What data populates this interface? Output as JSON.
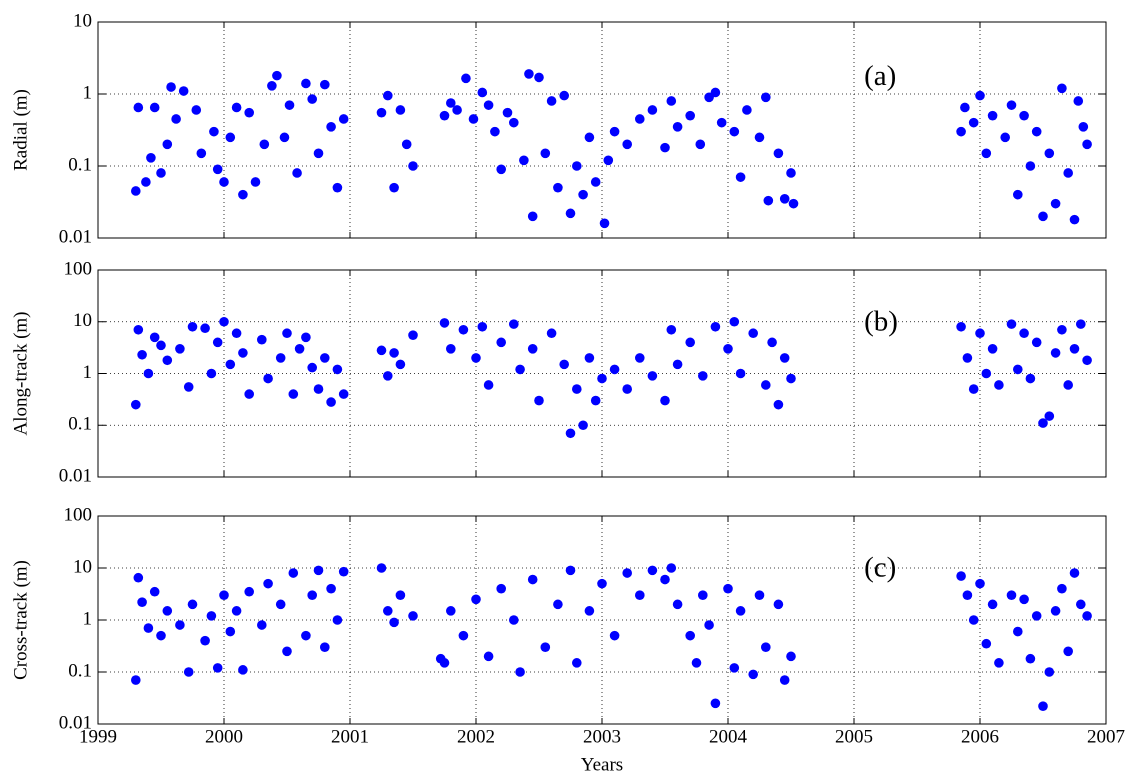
{
  "chart_data": [
    {
      "type": "scatter",
      "ylabel": "Radial (m)",
      "annotation": "(a)",
      "color": "#0000ff",
      "log_y": true,
      "grid": true,
      "show_xtick_labels": false,
      "xlim": [
        1999,
        2007
      ],
      "xticks": [
        1999,
        2000,
        2001,
        2002,
        2003,
        2004,
        2005,
        2006,
        2007
      ],
      "ylim": [
        0.01,
        10
      ],
      "yticks": [
        0.01,
        0.1,
        1,
        10
      ],
      "x": [
        1999.3,
        1999.32,
        1999.38,
        1999.42,
        1999.45,
        1999.5,
        1999.55,
        1999.58,
        1999.62,
        1999.68,
        1999.78,
        1999.82,
        1999.92,
        1999.95,
        2000.0,
        2000.05,
        2000.1,
        2000.15,
        2000.2,
        2000.25,
        2000.32,
        2000.38,
        2000.42,
        2000.48,
        2000.52,
        2000.58,
        2000.65,
        2000.7,
        2000.75,
        2000.8,
        2000.85,
        2000.9,
        2000.95,
        2001.25,
        2001.3,
        2001.35,
        2001.4,
        2001.45,
        2001.5,
        2001.75,
        2001.8,
        2001.85,
        2001.92,
        2001.98,
        2002.05,
        2002.1,
        2002.15,
        2002.2,
        2002.25,
        2002.3,
        2002.38,
        2002.42,
        2002.45,
        2002.5,
        2002.55,
        2002.6,
        2002.65,
        2002.7,
        2002.75,
        2002.8,
        2002.85,
        2002.9,
        2002.95,
        2003.02,
        2003.05,
        2003.1,
        2003.2,
        2003.3,
        2003.4,
        2003.5,
        2003.55,
        2003.6,
        2003.7,
        2003.78,
        2003.85,
        2003.9,
        2003.95,
        2004.05,
        2004.1,
        2004.15,
        2004.25,
        2004.3,
        2004.32,
        2004.4,
        2004.45,
        2004.5,
        2004.52,
        2005.85,
        2005.88,
        2005.95,
        2006.0,
        2006.05,
        2006.1,
        2006.2,
        2006.25,
        2006.3,
        2006.35,
        2006.4,
        2006.45,
        2006.5,
        2006.55,
        2006.6,
        2006.65,
        2006.7,
        2006.75,
        2006.78,
        2006.82,
        2006.85
      ],
      "values": [
        0.045,
        0.65,
        0.06,
        0.13,
        0.65,
        0.08,
        0.2,
        1.25,
        0.45,
        1.1,
        0.6,
        0.15,
        0.3,
        0.09,
        0.06,
        0.25,
        0.65,
        0.04,
        0.55,
        0.06,
        0.2,
        1.3,
        1.8,
        0.25,
        0.7,
        0.08,
        1.4,
        0.85,
        0.15,
        1.35,
        0.35,
        0.05,
        0.45,
        0.55,
        0.95,
        0.05,
        0.6,
        0.2,
        0.1,
        0.5,
        0.75,
        0.6,
        1.65,
        0.45,
        1.05,
        0.7,
        0.3,
        0.09,
        0.55,
        0.4,
        0.12,
        1.9,
        0.02,
        1.7,
        0.15,
        0.8,
        0.05,
        0.95,
        0.022,
        0.1,
        0.04,
        0.25,
        0.06,
        0.016,
        0.12,
        0.3,
        0.2,
        0.45,
        0.6,
        0.18,
        0.8,
        0.35,
        0.5,
        0.2,
        0.9,
        1.05,
        0.4,
        0.3,
        0.07,
        0.6,
        0.25,
        0.9,
        0.033,
        0.15,
        0.035,
        0.08,
        0.03,
        0.3,
        0.65,
        0.4,
        0.95,
        0.15,
        0.5,
        0.25,
        0.7,
        0.04,
        0.5,
        0.1,
        0.3,
        0.02,
        0.15,
        0.03,
        1.2,
        0.08,
        0.018,
        0.8,
        0.35,
        0.2
      ]
    },
    {
      "type": "scatter",
      "ylabel": "Along-track  (m)",
      "annotation": "(b)",
      "color": "#0000ff",
      "log_y": true,
      "grid": true,
      "show_xtick_labels": false,
      "xlim": [
        1999,
        2007
      ],
      "xticks": [
        1999,
        2000,
        2001,
        2002,
        2003,
        2004,
        2005,
        2006,
        2007
      ],
      "ylim": [
        0.01,
        100
      ],
      "yticks": [
        0.01,
        0.1,
        1,
        10,
        100
      ],
      "x": [
        1999.3,
        1999.32,
        1999.35,
        1999.4,
        1999.45,
        1999.5,
        1999.55,
        1999.65,
        1999.72,
        1999.75,
        1999.85,
        1999.9,
        1999.95,
        2000.0,
        2000.05,
        2000.1,
        2000.15,
        2000.2,
        2000.3,
        2000.35,
        2000.45,
        2000.5,
        2000.55,
        2000.6,
        2000.65,
        2000.7,
        2000.75,
        2000.8,
        2000.85,
        2000.9,
        2000.95,
        2001.25,
        2001.3,
        2001.35,
        2001.4,
        2001.5,
        2001.75,
        2001.8,
        2001.9,
        2002.0,
        2002.05,
        2002.1,
        2002.2,
        2002.3,
        2002.35,
        2002.45,
        2002.5,
        2002.6,
        2002.7,
        2002.75,
        2002.8,
        2002.85,
        2002.9,
        2002.95,
        2003.0,
        2003.1,
        2003.2,
        2003.3,
        2003.4,
        2003.5,
        2003.55,
        2003.6,
        2003.7,
        2003.8,
        2003.9,
        2004.0,
        2004.05,
        2004.1,
        2004.2,
        2004.3,
        2004.35,
        2004.4,
        2004.45,
        2004.5,
        2005.85,
        2005.9,
        2005.95,
        2006.0,
        2006.05,
        2006.1,
        2006.15,
        2006.25,
        2006.3,
        2006.35,
        2006.4,
        2006.45,
        2006.5,
        2006.55,
        2006.6,
        2006.65,
        2006.7,
        2006.75,
        2006.8,
        2006.85
      ],
      "values": [
        0.25,
        7,
        2.3,
        1,
        5,
        3.5,
        1.8,
        3,
        0.55,
        8,
        7.5,
        1,
        4,
        10,
        1.5,
        6,
        2.5,
        0.4,
        4.5,
        0.8,
        2,
        6,
        0.4,
        3,
        5,
        1.3,
        0.5,
        2,
        0.28,
        1.2,
        0.4,
        2.8,
        0.9,
        2.5,
        1.5,
        5.5,
        9.5,
        3,
        7,
        2,
        8,
        0.6,
        4,
        9,
        1.2,
        3,
        0.3,
        6,
        1.5,
        0.07,
        0.5,
        0.1,
        2,
        0.3,
        0.8,
        1.2,
        0.5,
        2,
        0.9,
        0.3,
        7,
        1.5,
        4,
        0.9,
        8,
        3,
        10,
        1,
        6,
        0.6,
        4,
        0.25,
        2,
        0.8,
        8,
        2,
        0.5,
        6,
        1,
        3,
        0.6,
        9,
        1.2,
        6,
        0.8,
        4,
        0.11,
        0.15,
        2.5,
        7,
        0.6,
        3,
        9,
        1.8
      ]
    },
    {
      "type": "scatter",
      "ylabel": "Cross-track (m)",
      "annotation": "(c)",
      "xlabel": "Years",
      "color": "#0000ff",
      "log_y": true,
      "grid": true,
      "show_xtick_labels": true,
      "xlim": [
        1999,
        2007
      ],
      "xticks": [
        1999,
        2000,
        2001,
        2002,
        2003,
        2004,
        2005,
        2006,
        2007
      ],
      "ylim": [
        0.01,
        100
      ],
      "yticks": [
        0.01,
        0.1,
        1,
        10,
        100
      ],
      "x": [
        1999.3,
        1999.32,
        1999.35,
        1999.4,
        1999.45,
        1999.5,
        1999.55,
        1999.65,
        1999.72,
        1999.75,
        1999.85,
        1999.9,
        1999.95,
        2000.0,
        2000.05,
        2000.1,
        2000.15,
        2000.2,
        2000.3,
        2000.35,
        2000.45,
        2000.5,
        2000.55,
        2000.65,
        2000.7,
        2000.75,
        2000.8,
        2000.85,
        2000.9,
        2000.95,
        2001.25,
        2001.3,
        2001.35,
        2001.4,
        2001.5,
        2001.72,
        2001.75,
        2001.8,
        2001.9,
        2002.0,
        2002.1,
        2002.2,
        2002.3,
        2002.35,
        2002.45,
        2002.55,
        2002.65,
        2002.75,
        2002.8,
        2002.9,
        2003.0,
        2003.1,
        2003.2,
        2003.3,
        2003.4,
        2003.5,
        2003.55,
        2003.6,
        2003.7,
        2003.75,
        2003.8,
        2003.85,
        2003.9,
        2004.0,
        2004.05,
        2004.1,
        2004.2,
        2004.25,
        2004.3,
        2004.4,
        2004.45,
        2004.5,
        2005.85,
        2005.9,
        2005.95,
        2006.0,
        2006.05,
        2006.1,
        2006.15,
        2006.25,
        2006.3,
        2006.35,
        2006.4,
        2006.45,
        2006.5,
        2006.55,
        2006.6,
        2006.65,
        2006.7,
        2006.75,
        2006.8,
        2006.85
      ],
      "values": [
        0.07,
        6.5,
        2.2,
        0.7,
        3.5,
        0.5,
        1.5,
        0.8,
        0.1,
        2,
        0.4,
        1.2,
        0.12,
        3,
        0.6,
        1.5,
        0.11,
        3.5,
        0.8,
        5,
        2,
        0.25,
        8,
        0.5,
        3,
        9,
        0.3,
        4,
        1,
        8.5,
        10,
        1.5,
        0.9,
        3,
        1.2,
        0.18,
        0.15,
        1.5,
        0.5,
        2.5,
        0.2,
        4,
        1,
        0.1,
        6,
        0.3,
        2,
        9,
        0.15,
        1.5,
        5,
        0.5,
        8,
        3,
        9,
        6,
        10,
        2,
        0.5,
        0.15,
        3,
        0.8,
        0.025,
        4,
        0.12,
        1.5,
        0.09,
        3,
        0.3,
        2,
        0.07,
        0.2,
        7,
        3,
        1,
        5,
        0.35,
        2,
        0.15,
        3,
        0.6,
        2.5,
        0.18,
        1.2,
        0.022,
        0.1,
        1.5,
        4,
        0.25,
        8,
        2,
        1.2
      ]
    }
  ]
}
